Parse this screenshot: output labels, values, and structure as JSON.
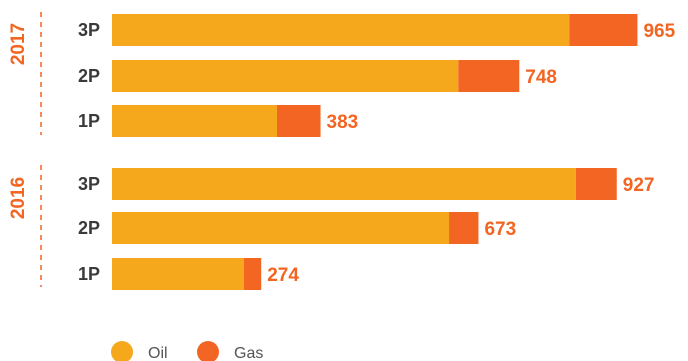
{
  "colors": {
    "oil": "#F6A81C",
    "gas": "#F26522",
    "labels": "#F26522",
    "category_text": "#3a3a3a"
  },
  "chart_data": {
    "type": "bar",
    "orientation": "horizontal",
    "stacked": true,
    "groups": [
      {
        "year": "2017",
        "categories": [
          "3P",
          "2P",
          "1P"
        ],
        "series": [
          {
            "name": "Oil",
            "values": [
              840,
              636,
              303
            ]
          },
          {
            "name": "Gas",
            "values": [
              125,
              112,
              80
            ]
          }
        ],
        "totals": [
          "965",
          "748",
          "383"
        ]
      },
      {
        "year": "2016",
        "categories": [
          "3P",
          "2P",
          "1P"
        ],
        "series": [
          {
            "name": "Oil",
            "values": [
              852,
              619,
              242
            ]
          },
          {
            "name": "Gas",
            "values": [
              75,
              54,
              32
            ]
          }
        ],
        "totals": [
          "927",
          "673",
          "274"
        ]
      }
    ],
    "legend": {
      "position": "bottom-left",
      "entries": [
        "Oil",
        "Gas"
      ]
    },
    "xlim": [
      0,
      1000
    ],
    "grid": false
  }
}
